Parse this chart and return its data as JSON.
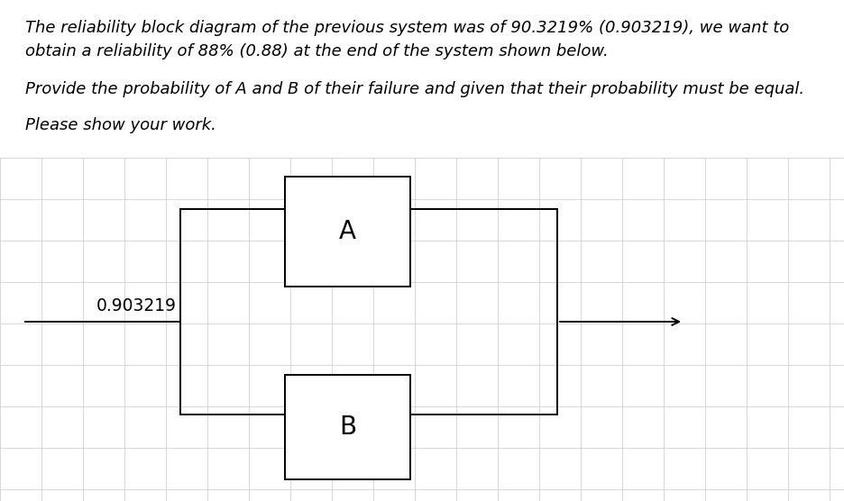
{
  "title_line1": "The reliability block diagram of the previous system was of 90.3219% (0.903219), we want to",
  "title_line2": "obtain a reliability of 88% (0.88) at the end of the system shown below.",
  "subtitle": "Provide the probability of A and B of their failure and given that their probability must be equal.",
  "instruction": "Please show your work.",
  "input_label": "0.903219",
  "block_A_label": "A",
  "block_B_label": "B",
  "text_color": "#000000",
  "bg_color": "#ffffff",
  "grid_color": "#c8c8c8",
  "box_color": "#000000",
  "font_size_text": 13.0,
  "font_size_block": 20,
  "font_size_input": 13.5,
  "fig_width": 9.36,
  "fig_height": 5.56
}
